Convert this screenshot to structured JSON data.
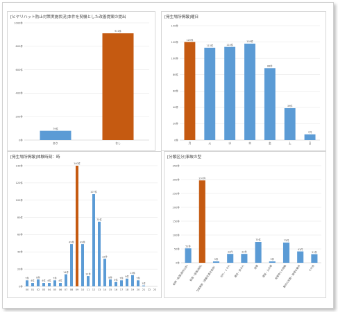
{
  "colors": {
    "blue": "#5b9bd5",
    "orange": "#c55a11",
    "grid": "#e2e2e2",
    "axis": "#bfbfbf",
    "text": "#555555"
  },
  "chart_data": [
    {
      "type": "bar",
      "title": "[ヒヤリハット防止対策実施状況]本件を契機とした改善提案の提出",
      "categories": [
        "あり",
        "なし"
      ],
      "values": [
        79,
        911
      ],
      "value_labels": [
        "79件",
        "911件"
      ],
      "highlight_index": 1,
      "ylim": [
        0,
        1000
      ],
      "yticks": [
        0,
        200,
        400,
        600,
        800,
        1000
      ],
      "ytick_labels": [
        "0件",
        "200件",
        "400件",
        "600件",
        "800件",
        "1000件"
      ],
      "grid": true
    },
    {
      "type": "bar",
      "title": "[発生場所情報]曜日",
      "categories": [
        "月",
        "火",
        "水",
        "木",
        "金",
        "土",
        "日"
      ],
      "values": [
        120,
        113,
        114,
        118,
        88,
        39,
        7
      ],
      "value_labels": [
        "120件",
        "113件",
        "114件",
        "118件",
        "88件",
        "39件",
        "7件"
      ],
      "highlight_index": 0,
      "ylim": [
        0,
        140
      ],
      "yticks": [
        0,
        20,
        40,
        60,
        80,
        100,
        120,
        140
      ],
      "ytick_labels": [
        "0件",
        "20件",
        "40件",
        "60件",
        "80件",
        "100件",
        "120件",
        "140件"
      ],
      "grid": true
    },
    {
      "type": "bar",
      "title": "[発生場所情報]体験時刻：時",
      "categories": [
        "00",
        "01",
        "02",
        "03",
        "04",
        "05",
        "06",
        "07",
        "08",
        "09",
        "10",
        "11",
        "12",
        "13",
        "14",
        "15",
        "16",
        "17",
        "18",
        "19",
        "20",
        "21",
        "22",
        "23"
      ],
      "values": [
        7,
        4,
        8,
        4,
        4,
        7,
        4,
        14,
        49,
        140,
        49,
        12,
        107,
        75,
        32,
        8,
        5,
        7,
        9,
        13,
        7,
        1,
        0,
        0
      ],
      "value_labels": [
        "7件",
        "4件",
        "8件",
        "4件",
        "4件",
        "7件",
        "4件",
        "14件",
        "49件",
        "140件",
        "49件",
        "12件",
        "107件",
        "75件",
        "32件",
        "8件",
        "5件",
        "7件",
        "9件",
        "13件",
        "7件",
        "1件",
        "",
        ""
      ],
      "highlight_index": 9,
      "ylim": [
        0,
        140
      ],
      "yticks": [
        0,
        20,
        40,
        60,
        80,
        100,
        120,
        140
      ],
      "ytick_labels": [
        "0件",
        "20件",
        "40件",
        "60件",
        "80件",
        "100件",
        "120件",
        "140件"
      ],
      "grid": true
    },
    {
      "type": "bar",
      "title": "[分類区分]事故の型",
      "categories": [
        "転倒・転落(高所以外)",
        "転落・墜落(高所)",
        "交通事故（道路交通法適用）",
        "切れ・こすれ",
        "激突・挟まれ",
        "感電",
        "爆発・火災等",
        "有害物との接触",
        "動作の反動・無理な動作",
        "その他"
      ],
      "values": [
        52,
        297,
        5,
        32,
        32,
        75,
        5,
        73,
        41,
        31
      ],
      "value_labels": [
        "52件",
        "297件",
        "5件",
        "32件",
        "32件",
        "75件",
        "5件",
        "73件",
        "41件",
        "31件"
      ],
      "highlight_index": 1,
      "ylim": [
        0,
        350
      ],
      "yticks": [
        0,
        50,
        100,
        150,
        200,
        250,
        300,
        350
      ],
      "ytick_labels": [
        "0件",
        "50件",
        "100件",
        "150件",
        "200件",
        "250件",
        "300件",
        "350件"
      ],
      "grid": true
    }
  ]
}
